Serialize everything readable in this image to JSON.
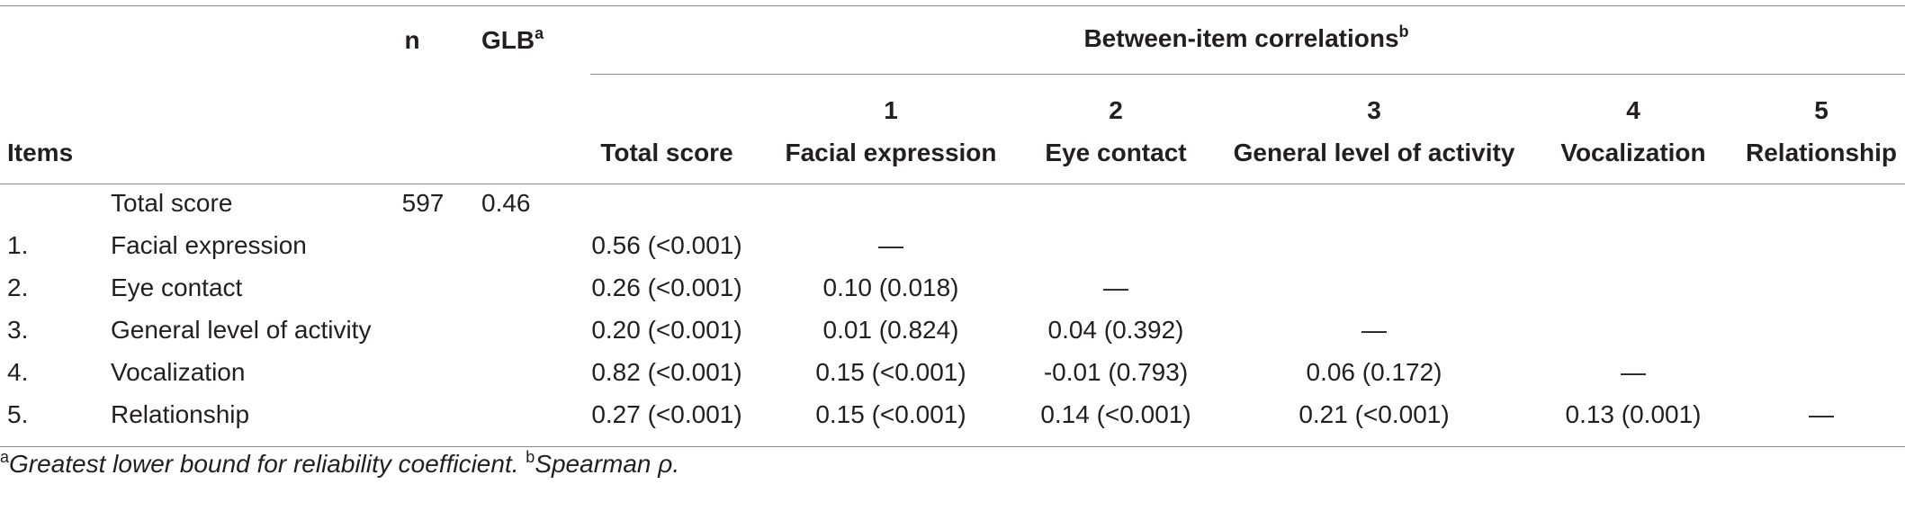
{
  "header": {
    "items": "Items",
    "n": "n",
    "glb": "GLB",
    "glb_sup": "a",
    "between": "Between-item correlations",
    "between_sup": "b",
    "columns": [
      {
        "num": "",
        "label": "Total score"
      },
      {
        "num": "1",
        "label": "Facial expression"
      },
      {
        "num": "2",
        "label": "Eye contact"
      },
      {
        "num": "3",
        "label": "General level of activity"
      },
      {
        "num": "4",
        "label": "Vocalization"
      },
      {
        "num": "5",
        "label": "Relationship"
      }
    ]
  },
  "rows": [
    {
      "num": "",
      "label": "Total score",
      "n": "597",
      "glb": "0.46",
      "cells": [
        "",
        "",
        "",
        "",
        "",
        ""
      ]
    },
    {
      "num": "1.",
      "label": "Facial expression",
      "n": "",
      "glb": "",
      "cells": [
        "0.56 (<0.001)",
        "—",
        "",
        "",
        "",
        ""
      ]
    },
    {
      "num": "2.",
      "label": "Eye contact",
      "n": "",
      "glb": "",
      "cells": [
        "0.26 (<0.001)",
        "0.10 (0.018)",
        "—",
        "",
        "",
        ""
      ]
    },
    {
      "num": "3.",
      "label": "General level of activity",
      "n": "",
      "glb": "",
      "cells": [
        "0.20 (<0.001)",
        "0.01 (0.824)",
        "0.04 (0.392)",
        "—",
        "",
        ""
      ]
    },
    {
      "num": "4.",
      "label": "Vocalization",
      "n": "",
      "glb": "",
      "cells": [
        "0.82 (<0.001)",
        "0.15 (<0.001)",
        "-0.01 (0.793)",
        "0.06 (0.172)",
        "—",
        ""
      ]
    },
    {
      "num": "5.",
      "label": "Relationship",
      "n": "",
      "glb": "",
      "cells": [
        "0.27 (<0.001)",
        "0.15 (<0.001)",
        "0.14 (<0.001)",
        "0.21 (<0.001)",
        "0.13 (0.001)",
        "—"
      ]
    }
  ],
  "footnote": {
    "a_mark": "a",
    "a_text": "Greatest lower bound for reliability coefficient.",
    "b_mark": "b",
    "b_text": "Spearman ρ."
  }
}
